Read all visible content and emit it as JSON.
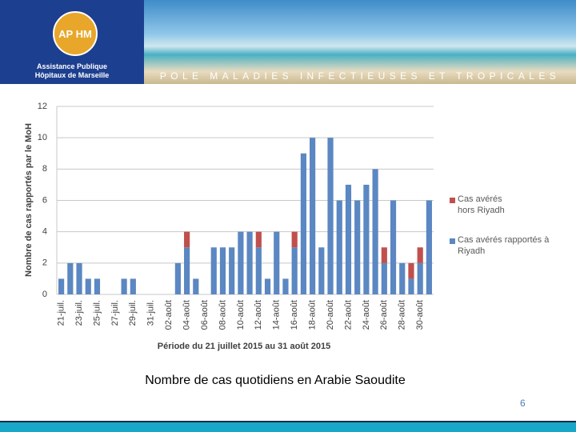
{
  "header": {
    "logo": "AP HM",
    "institution": [
      "Assistance Publique",
      "Hôpitaux de Marseille"
    ],
    "banner": "POLE MALADIES INFECTIEUSES ET TROPICALES"
  },
  "chart_data": {
    "type": "stacked_bar",
    "y_label": "Nombre de cas rapportés par le MoH",
    "x_label": "Période du 21 juillet 2015 au 31 août 2015",
    "categories": [
      "21-juil.",
      null,
      "23-juil.",
      null,
      "25-juil.",
      null,
      "27-juil.",
      null,
      "29-juil.",
      null,
      "31-juil.",
      null,
      "02-août",
      null,
      "04-août",
      null,
      "06-août",
      null,
      "08-août",
      null,
      "10-août",
      null,
      "12-août",
      null,
      "14-août",
      null,
      "16-août",
      null,
      "18-août",
      null,
      "20-août",
      null,
      "22-août",
      null,
      "24-août",
      null,
      "26-août",
      null,
      "28-août",
      null,
      "30-août",
      null
    ],
    "series": [
      {
        "name": "Cas avérés rapportés à Riyadh",
        "color": "#5b87c2",
        "values": [
          1,
          2,
          2,
          1,
          1,
          0,
          0,
          1,
          1,
          0,
          0,
          0,
          0,
          2,
          3,
          1,
          0,
          3,
          3,
          3,
          4,
          4,
          3,
          1,
          4,
          1,
          3,
          9,
          10,
          3,
          10,
          6,
          7,
          6,
          7,
          8,
          2,
          6,
          2,
          1,
          2,
          6
        ]
      },
      {
        "name": "Cas avérés hors Riyadh",
        "color": "#c0504d",
        "values": [
          0,
          0,
          0,
          0,
          0,
          0,
          0,
          0,
          0,
          0,
          0,
          0,
          0,
          0,
          1,
          0,
          0,
          0,
          0,
          0,
          0,
          0,
          1,
          0,
          0,
          0,
          1,
          0,
          0,
          0,
          0,
          0,
          0,
          0,
          0,
          0,
          1,
          0,
          0,
          1,
          1,
          0
        ]
      }
    ],
    "ylim": [
      0,
      12
    ],
    "yticks": [
      0,
      2,
      4,
      6,
      8,
      10,
      12
    ],
    "grid": true,
    "legend": "right"
  },
  "caption": "Nombre de cas quotidiens en Arabie Saoudite",
  "page_number": "6"
}
